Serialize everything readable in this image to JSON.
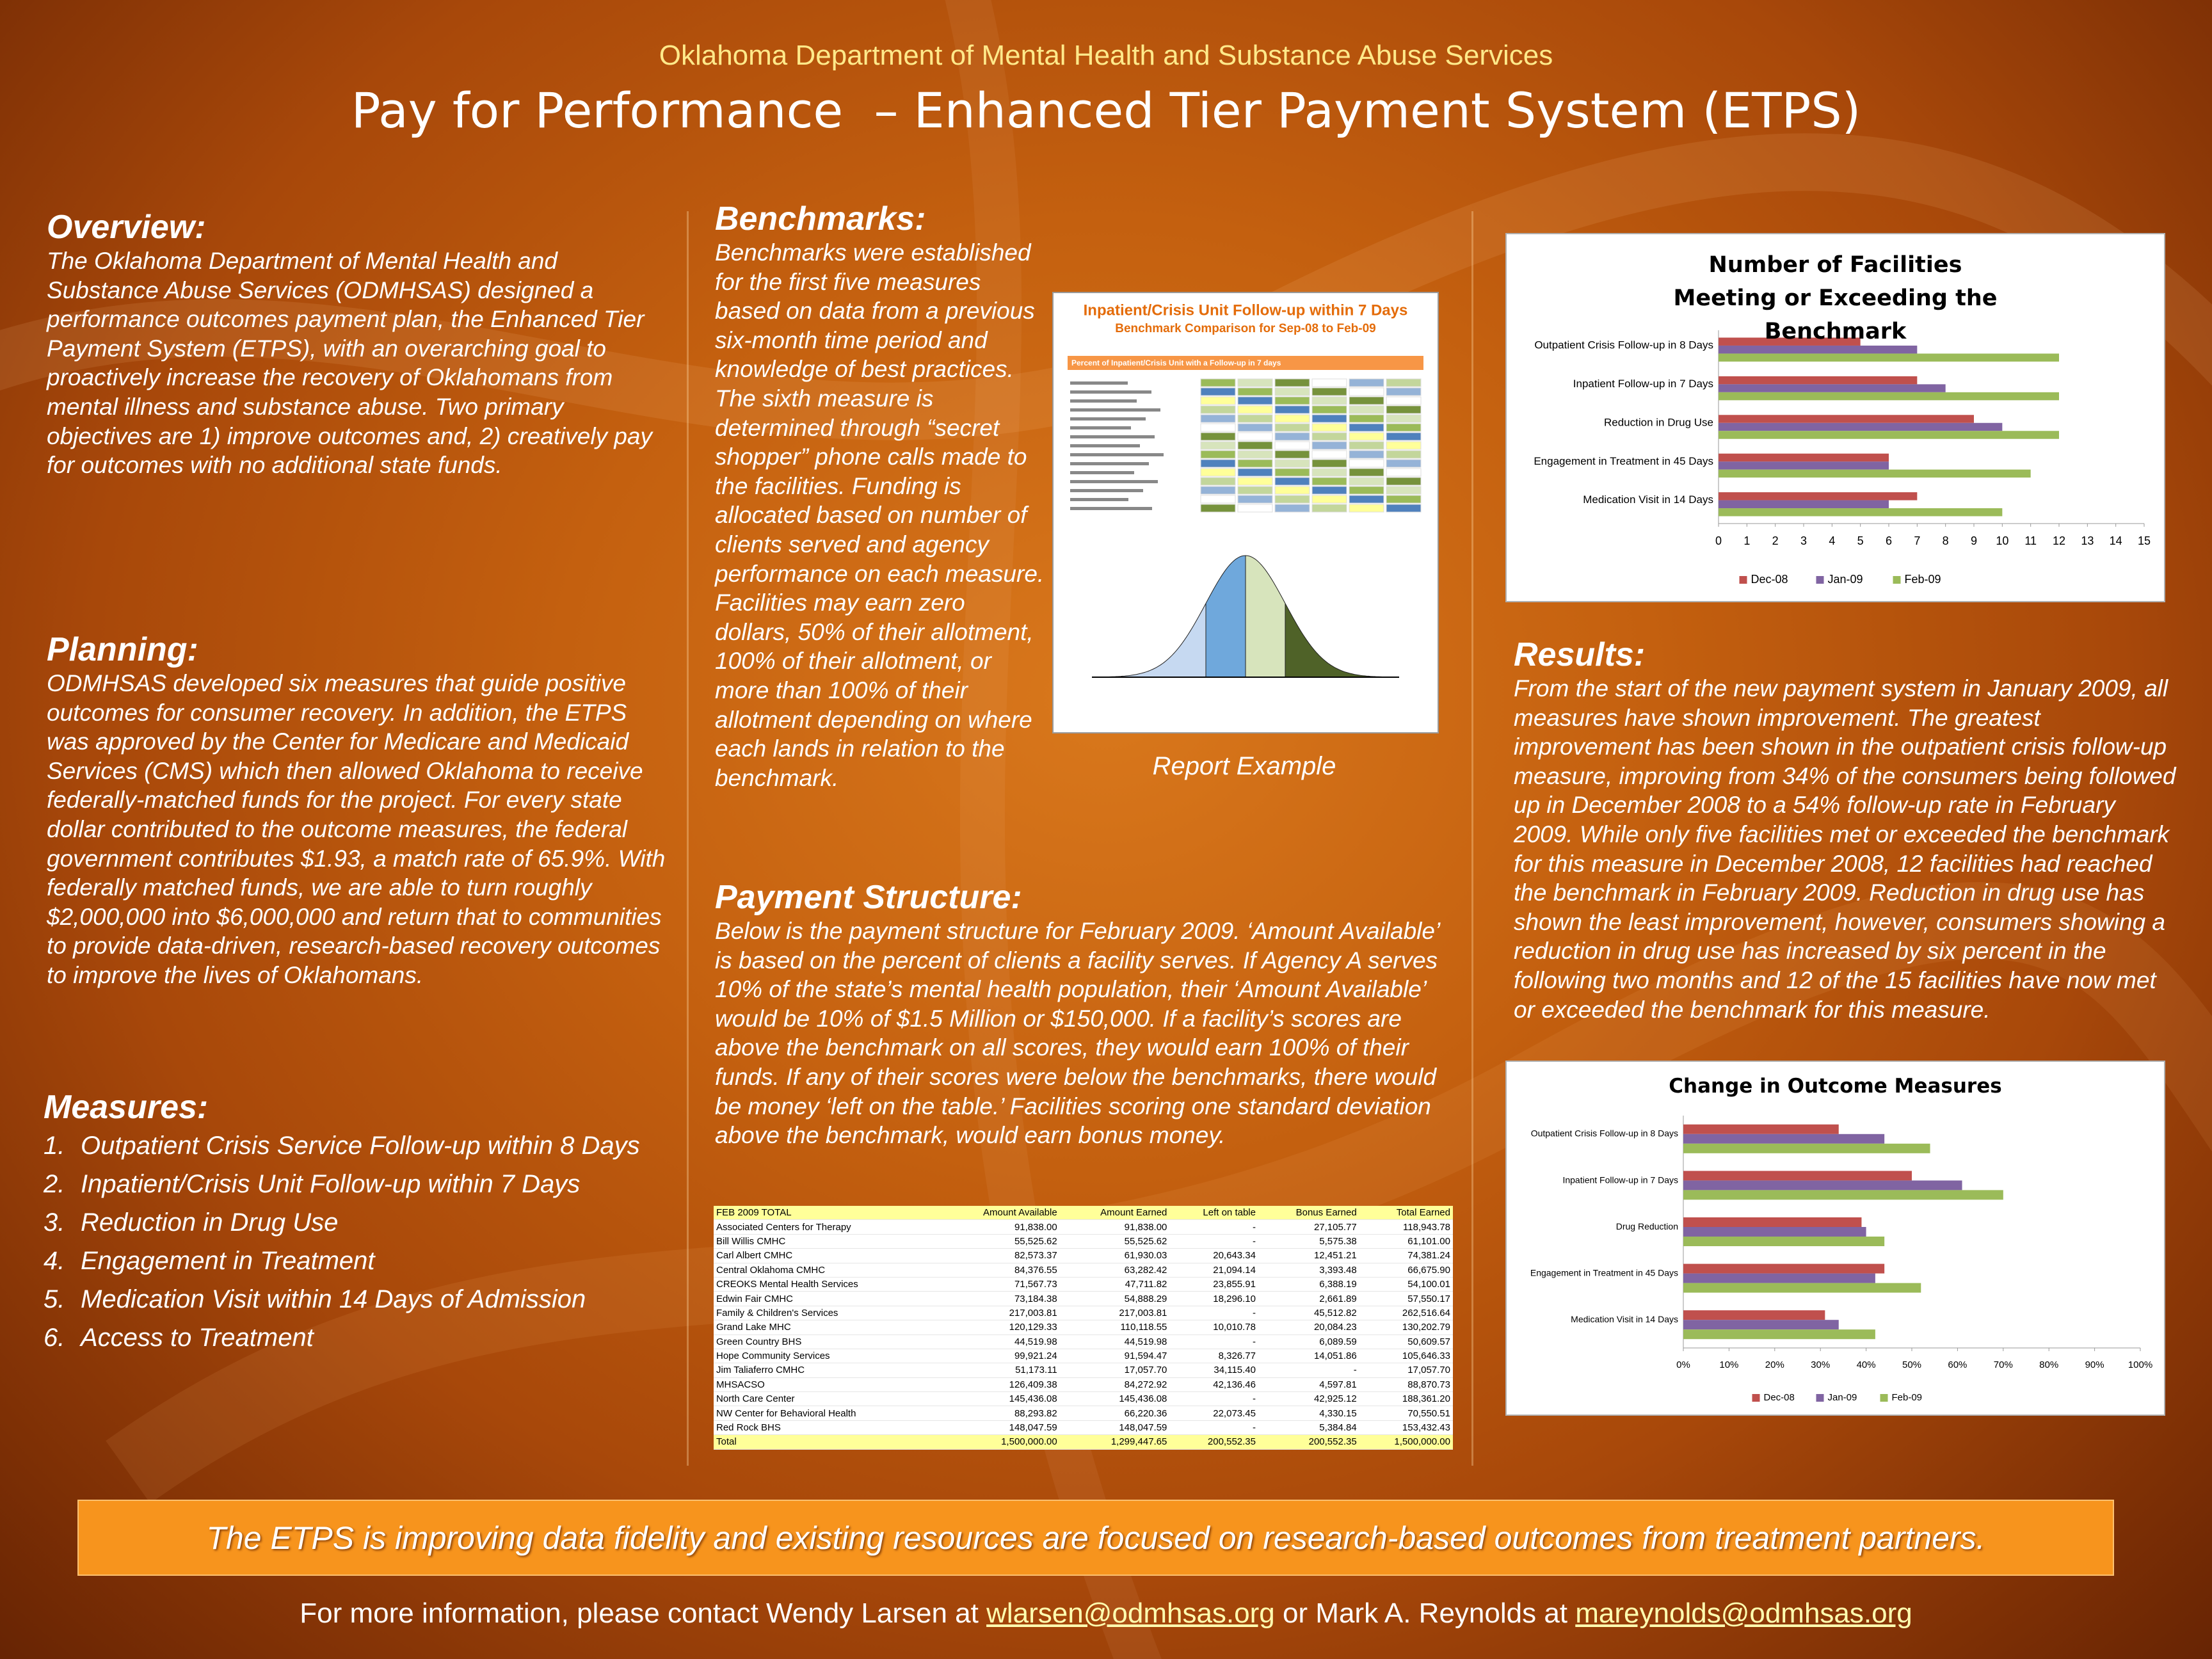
{
  "header": {
    "organization": "Oklahoma Department of Mental Health and Substance Abuse Services",
    "title": "Pay for Performance  – Enhanced Tier Payment System (ETPS)"
  },
  "overview": {
    "heading": "Overview:",
    "text": "The Oklahoma Department of Mental Health and Substance Abuse Services (ODMHSAS) designed a performance outcomes payment plan, the Enhanced Tier Payment System (ETPS), with an overarching goal to proactively increase the recovery of Oklahomans from mental illness and substance abuse. Two primary objectives are 1) improve outcomes and, 2) creatively pay for outcomes with no additional state funds."
  },
  "planning": {
    "heading": "Planning:",
    "text": "ODMHSAS developed six measures that guide positive outcomes for consumer recovery. In addition, the ETPS was approved by the Center for Medicare and Medicaid Services (CMS) which then allowed Oklahoma to receive federally-matched funds for the project. For every state dollar contributed to the outcome measures, the federal government contributes $1.93, a match rate of 65.9%. With federally matched funds, we are able to turn roughly $2,000,000 into $6,000,000 and return that to communities to provide data-driven, research-based recovery outcomes to improve the lives of Oklahomans."
  },
  "measures": {
    "heading": "Measures:",
    "items": [
      {
        "number": "1.",
        "text": "Outpatient Crisis Service Follow-up within 8 Days"
      },
      {
        "number": "2.",
        "text": "Inpatient/Crisis Unit Follow-up within 7 Days"
      },
      {
        "number": "3.",
        "text": "Reduction in Drug Use"
      },
      {
        "number": "4.",
        "text": "Engagement in Treatment"
      },
      {
        "number": "5.",
        "text": "Medication Visit within 14 Days of Admission"
      },
      {
        "number": "6.",
        "text": "Access to Treatment"
      }
    ]
  },
  "benchmarks": {
    "heading": "Benchmarks:",
    "text": "Benchmarks were established for the first five measures based on data from a previous six-month time period and knowledge of best practices. The sixth measure is determined through “secret shopper” phone calls made to the facilities. Funding is allocated based on number of clients served and agency performance on each measure. Facilities may earn zero dollars, 50% of their allotment, 100% of their allotment, or more than 100% of their allotment depending on where each lands in relation to the benchmark."
  },
  "report_example": {
    "title": "Inpatient/Crisis Unit Follow-up within 7 Days",
    "subtitle": "Benchmark Comparison for Sep-08 to Feb-09",
    "table_heading": "Percent of Inpatient/Crisis Unit with a Follow-up in 7 days",
    "caption": "Report Example"
  },
  "payment_structure": {
    "heading": "Payment Structure:",
    "text": "Below is the payment structure for February 2009. ‘Amount Available’ is based on the percent of clients a facility serves. If Agency A serves 10% of the state’s mental health population, their ‘Amount Available’ would be 10% of $1.5 Million or $150,000. If a facility’s scores are above the benchmark on all scores, they would earn 100% of their funds. If any of their scores were below the benchmarks, there would be money ‘left on the table.’ Facilities scoring one standard deviation above the benchmark, would earn bonus money.",
    "table": {
      "columns": [
        "FEB 2009 TOTAL",
        "Amount Available",
        "Amount Earned",
        "Left on table",
        "Bonus Earned",
        "Total Earned"
      ],
      "rows": [
        [
          "Associated Centers for Therapy",
          "91,838.00",
          "91,838.00",
          "-",
          "27,105.77",
          "118,943.78"
        ],
        [
          "Bill Willis CMHC",
          "55,525.62",
          "55,525.62",
          "-",
          "5,575.38",
          "61,101.00"
        ],
        [
          "Carl Albert CMHC",
          "82,573.37",
          "61,930.03",
          "20,643.34",
          "12,451.21",
          "74,381.24"
        ],
        [
          "Central Oklahoma CMHC",
          "84,376.55",
          "63,282.42",
          "21,094.14",
          "3,393.48",
          "66,675.90"
        ],
        [
          "CREOKS Mental Health Services",
          "71,567.73",
          "47,711.82",
          "23,855.91",
          "6,388.19",
          "54,100.01"
        ],
        [
          "Edwin Fair CMHC",
          "73,184.38",
          "54,888.29",
          "18,296.10",
          "2,661.89",
          "57,550.17"
        ],
        [
          "Family & Children's Services",
          "217,003.81",
          "217,003.81",
          "-",
          "45,512.82",
          "262,516.64"
        ],
        [
          "Grand Lake MHC",
          "120,129.33",
          "110,118.55",
          "10,010.78",
          "20,084.23",
          "130,202.79"
        ],
        [
          "Green Country BHS",
          "44,519.98",
          "44,519.98",
          "-",
          "6,089.59",
          "50,609.57"
        ],
        [
          "Hope Community Services",
          "99,921.24",
          "91,594.47",
          "8,326.77",
          "14,051.86",
          "105,646.33"
        ],
        [
          "Jim Taliaferro CMHC",
          "51,173.11",
          "17,057.70",
          "34,115.40",
          "-",
          "17,057.70"
        ],
        [
          "MHSACSO",
          "126,409.38",
          "84,272.92",
          "42,136.46",
          "4,597.81",
          "88,870.73"
        ],
        [
          "North Care Center",
          "145,436.08",
          "145,436.08",
          "-",
          "42,925.12",
          "188,361.20"
        ],
        [
          "NW Center for Behavioral Health",
          "88,293.82",
          "66,220.36",
          "22,073.45",
          "4,330.15",
          "70,550.51"
        ],
        [
          "Red Rock BHS",
          "148,047.59",
          "148,047.59",
          "-",
          "5,384.84",
          "153,432.43"
        ],
        [
          "Total",
          "1,500,000.00",
          "1,299,447.65",
          "200,552.35",
          "200,552.35",
          "1,500,000.00"
        ]
      ]
    }
  },
  "results": {
    "heading": "Results:",
    "text": "From the start of the new payment system in January 2009, all measures have shown improvement. The greatest improvement has been shown in the outpatient crisis follow-up measure, improving from 34% of the consumers being followed up in December 2008 to a 54% follow-up rate in February 2009.  While only five facilities met or exceeded the benchmark for this measure in December 2008, 12 facilities had reached the benchmark in February 2009.  Reduction in drug use has shown the least improvement, however, consumers showing a reduction in drug use has increased by six percent in the following two months and 12 of the 15 facilities have now met or exceeded the benchmark for this measure."
  },
  "chart_data": [
    {
      "type": "bar",
      "orientation": "horizontal",
      "title": "Number of Facilities Meeting or Exceeding the Benchmark",
      "categories": [
        "Outpatient Crisis Follow-up in 8 Days",
        "Inpatient Follow-up in 7 Days",
        "Reduction in Drug Use",
        "Engagement in Treatment in 45 Days",
        "Medication Visit in 14 Days"
      ],
      "series": [
        {
          "name": "Dec-08",
          "color": "#c0504d",
          "values": [
            5,
            7,
            9,
            6,
            7
          ]
        },
        {
          "name": "Jan-09",
          "color": "#8064a2",
          "values": [
            7,
            8,
            10,
            6,
            6
          ]
        },
        {
          "name": "Feb-09",
          "color": "#9bbb59",
          "values": [
            12,
            12,
            12,
            11,
            10
          ]
        }
      ],
      "xlim": [
        0,
        15
      ],
      "xticks": [
        0,
        1,
        2,
        3,
        4,
        5,
        6,
        7,
        8,
        9,
        10,
        11,
        12,
        13,
        14,
        15
      ],
      "legend": "bottom",
      "grid": false
    },
    {
      "type": "bar",
      "orientation": "horizontal",
      "title": "Change in Outcome Measures",
      "categories": [
        "Outpatient Crisis Follow-up in 8 Days",
        "Inpatient Follow-up in 7 Days",
        "Drug Reduction",
        "Engagement in Treatment in 45 Days",
        "Medication Visit in 14 Days"
      ],
      "series": [
        {
          "name": "Dec-08",
          "color": "#c0504d",
          "values": [
            34,
            50,
            39,
            44,
            31
          ]
        },
        {
          "name": "Jan-09",
          "color": "#8064a2",
          "values": [
            44,
            61,
            40,
            42,
            34
          ]
        },
        {
          "name": "Feb-09",
          "color": "#9bbb59",
          "values": [
            54,
            70,
            44,
            52,
            42
          ]
        }
      ],
      "xlim": [
        0,
        100
      ],
      "xticks": [
        {
          "value": 0,
          "label": "0%"
        },
        {
          "value": 10,
          "label": "10%"
        },
        {
          "value": 20,
          "label": "20%"
        },
        {
          "value": 30,
          "label": "30%"
        },
        {
          "value": 40,
          "label": "40%"
        },
        {
          "value": 50,
          "label": "50%"
        },
        {
          "value": 60,
          "label": "60%"
        },
        {
          "value": 70,
          "label": "70%"
        },
        {
          "value": 80,
          "label": "80%"
        },
        {
          "value": 90,
          "label": "90%"
        },
        {
          "value": 100,
          "label": "100%"
        }
      ],
      "legend": "bottom",
      "grid": false
    }
  ],
  "banner": "The ETPS is improving data fidelity and existing resources are focused on research-based outcomes from treatment partners.",
  "footer": {
    "text_1": "For more information, please contact Wendy Larsen at ",
    "email_1": "wlarsen@odmhsas.org",
    "text_2": " or Mark A. Reynolds at ",
    "email_2": "mareynolds@odmhsas.org"
  }
}
